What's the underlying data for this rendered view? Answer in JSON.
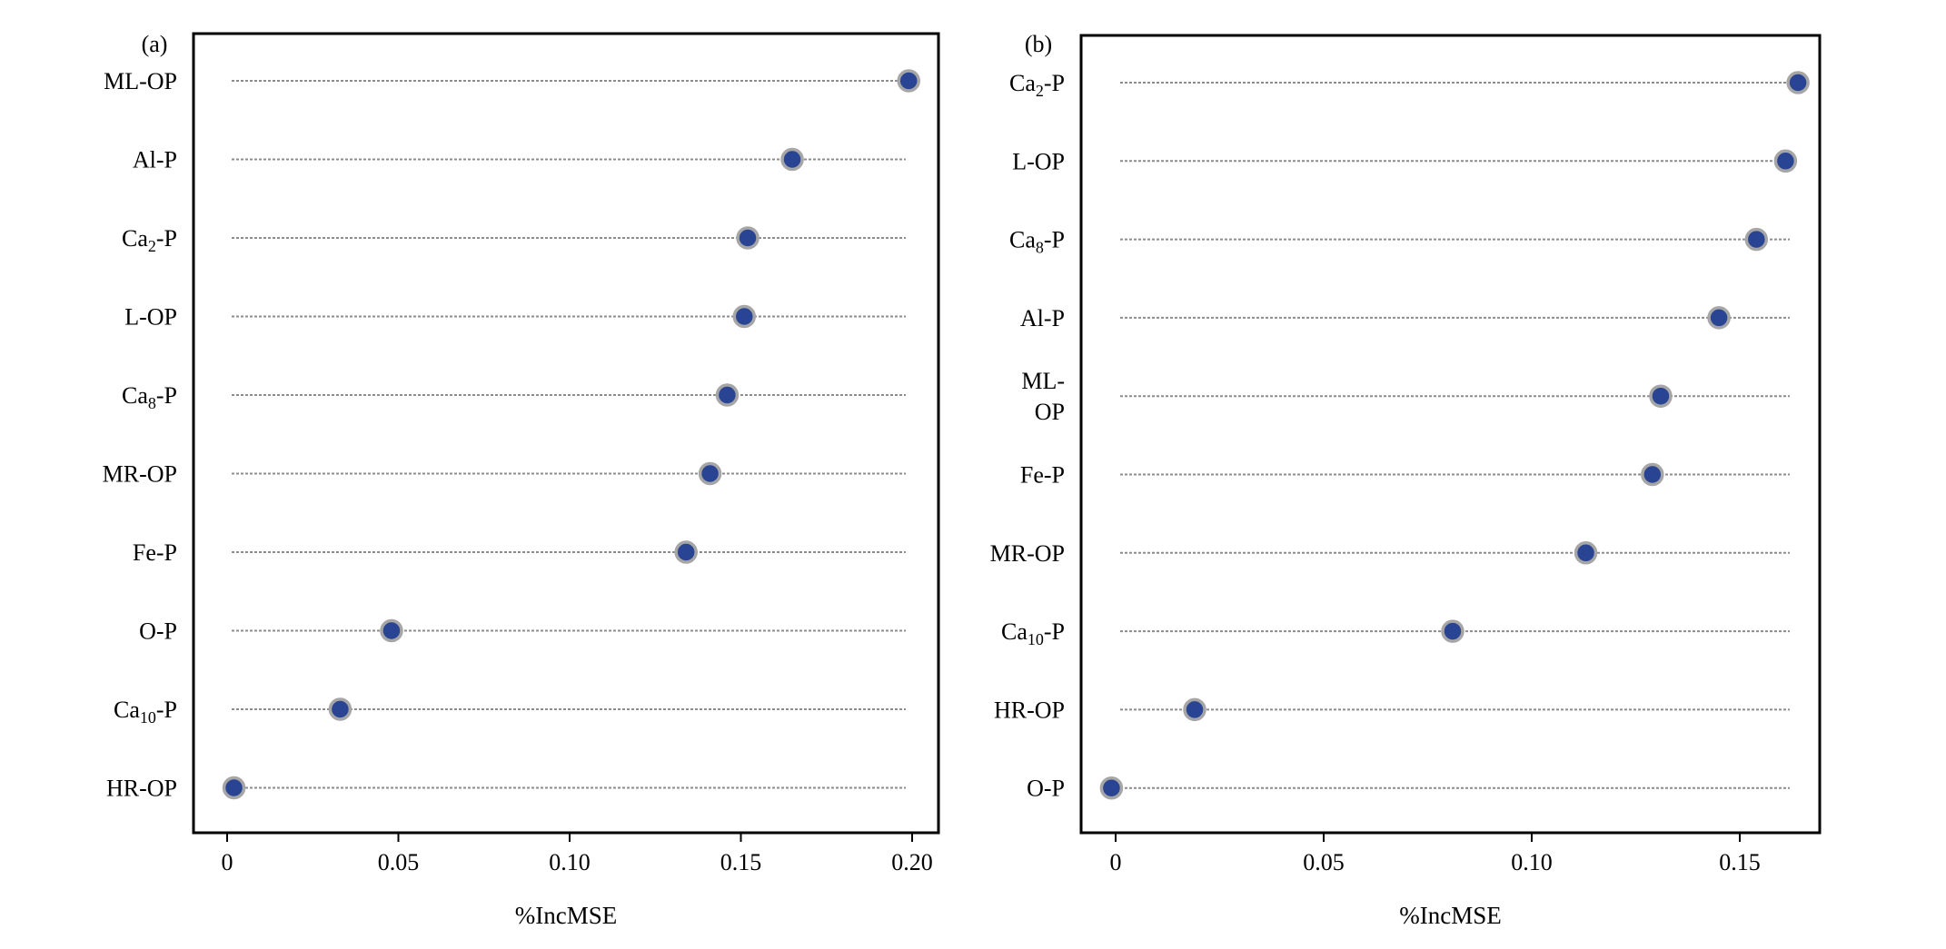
{
  "colors": {
    "dot_fill": "#2a4494",
    "dot_stroke": "#a6a6a6",
    "guide_line": "#8c8c8c",
    "axis": "#000000"
  },
  "chart_data": [
    {
      "type": "dot",
      "panel_label": "(a)",
      "xlabel": "%IncMSE",
      "ylabel": "",
      "xlim": [
        -0.01,
        0.21
      ],
      "xticks": [
        0,
        0.05,
        0.1,
        0.15,
        0.2
      ],
      "xtick_labels": [
        "0",
        "0.05",
        "0.10",
        "0.15",
        "0.20"
      ],
      "grid": false,
      "categories": [
        "ML-OP",
        "Al-P",
        "Ca2-P",
        "L-OP",
        "Ca8-P",
        "MR-OP",
        "Fe-P",
        "O-P",
        "Ca10-P",
        "HR-OP"
      ],
      "category_labels": [
        {
          "base": "ML-OP",
          "sub": "",
          "rest": ""
        },
        {
          "base": "Al-P",
          "sub": "",
          "rest": ""
        },
        {
          "base": "Ca",
          "sub": "2",
          "rest": "-P"
        },
        {
          "base": "L-OP",
          "sub": "",
          "rest": ""
        },
        {
          "base": "Ca",
          "sub": "8",
          "rest": "-P"
        },
        {
          "base": "MR-OP",
          "sub": "",
          "rest": ""
        },
        {
          "base": "Fe-P",
          "sub": "",
          "rest": ""
        },
        {
          "base": "O-P",
          "sub": "",
          "rest": ""
        },
        {
          "base": "Ca",
          "sub": "10",
          "rest": "-P"
        },
        {
          "base": "HR-OP",
          "sub": "",
          "rest": ""
        }
      ],
      "values": [
        0.199,
        0.165,
        0.152,
        0.151,
        0.146,
        0.141,
        0.134,
        0.048,
        0.033,
        0.002
      ]
    },
    {
      "type": "dot",
      "panel_label": "(b)",
      "xlabel": "%IncMSE",
      "ylabel": "",
      "xlim": [
        -0.008,
        0.171
      ],
      "xticks": [
        0,
        0.05,
        0.1,
        0.15
      ],
      "xtick_labels": [
        "0",
        "0.05",
        "0.10",
        "0.15"
      ],
      "grid": false,
      "categories": [
        "Ca2-P",
        "L-OP",
        "Ca8-P",
        "Al-P",
        "ML-OP",
        "Fe-P",
        "MR-OP",
        "Ca10-P",
        "HR-OP",
        "O-P"
      ],
      "category_labels": [
        {
          "base": "Ca",
          "sub": "2",
          "rest": "-P"
        },
        {
          "base": "L-OP",
          "sub": "",
          "rest": ""
        },
        {
          "base": "Ca",
          "sub": "8",
          "rest": "-P"
        },
        {
          "base": "Al-P",
          "sub": "",
          "rest": ""
        },
        {
          "base": "ML-",
          "sub": "",
          "rest": "",
          "line2": "OP"
        },
        {
          "base": "Fe-P",
          "sub": "",
          "rest": ""
        },
        {
          "base": "MR-OP",
          "sub": "",
          "rest": ""
        },
        {
          "base": "Ca",
          "sub": "10",
          "rest": "-P"
        },
        {
          "base": "HR-OP",
          "sub": "",
          "rest": ""
        },
        {
          "base": "O-P",
          "sub": "",
          "rest": ""
        }
      ],
      "values": [
        0.164,
        0.161,
        0.154,
        0.145,
        0.131,
        0.129,
        0.113,
        0.081,
        0.019,
        -0.001
      ]
    }
  ]
}
